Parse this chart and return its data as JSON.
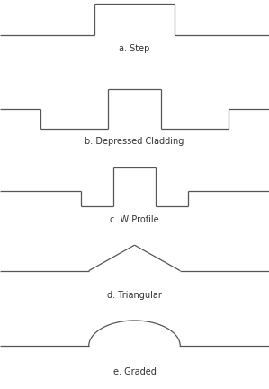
{
  "background_color": "#ffffff",
  "line_color": "#555555",
  "label_color": "#333333",
  "line_width": 0.9,
  "labels": [
    "a. Step",
    "b. Depressed Cladding",
    "c. W Profile",
    "d. Triangular",
    "e. Graded"
  ],
  "label_fontsize": 7.0,
  "fig_width": 2.99,
  "fig_height": 4.32,
  "dpi": 100,
  "panel_heights": [
    1,
    1,
    1,
    1,
    1
  ]
}
